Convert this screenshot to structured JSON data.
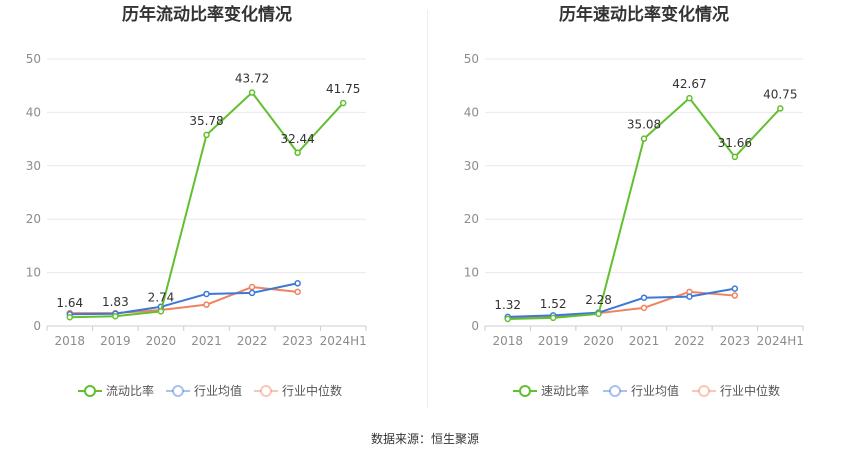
{
  "colors": {
    "own": "#62c02e",
    "industry_avg": "#3c78d8",
    "industry_median": "#f0825f",
    "axis_text": "#8c8c8c",
    "grid": "#e8e8ee",
    "title": "#333333"
  },
  "source": {
    "label": "数据来源：",
    "name": "恒生聚源"
  },
  "chart_data": [
    {
      "type": "line",
      "title": "历年流动比率变化情况",
      "x": [
        "2018",
        "2019",
        "2020",
        "2021",
        "2022",
        "2023",
        "2024H1"
      ],
      "ylim": [
        0,
        50
      ],
      "yticks": [
        0,
        10,
        20,
        30,
        40,
        50
      ],
      "grid": true,
      "legend_position": "bottom",
      "series": [
        {
          "name": "流动比率",
          "values": [
            1.64,
            1.83,
            2.74,
            35.78,
            43.72,
            32.44,
            41.75
          ],
          "labels": [
            "1.64",
            "1.83",
            "2.74",
            "35.78",
            "43.72",
            "32.44",
            "41.75"
          ]
        },
        {
          "name": "行业均值",
          "values": [
            2.2,
            2.3,
            3.6,
            6.0,
            6.2,
            8.0,
            null
          ]
        },
        {
          "name": "行业中位数",
          "values": [
            2.4,
            2.4,
            3.0,
            4.0,
            7.3,
            6.4,
            null
          ]
        }
      ]
    },
    {
      "type": "line",
      "title": "历年速动比率变化情况",
      "x": [
        "2018",
        "2019",
        "2020",
        "2021",
        "2022",
        "2023",
        "2024H1"
      ],
      "ylim": [
        0,
        50
      ],
      "yticks": [
        0,
        10,
        20,
        30,
        40,
        50
      ],
      "grid": true,
      "legend_position": "bottom",
      "series": [
        {
          "name": "速动比率",
          "values": [
            1.32,
            1.52,
            2.28,
            35.08,
            42.67,
            31.66,
            40.75
          ],
          "labels": [
            "1.32",
            "1.52",
            "2.28",
            "35.08",
            "42.67",
            "31.66",
            "40.75"
          ]
        },
        {
          "name": "行业均值",
          "values": [
            1.7,
            2.0,
            2.5,
            5.3,
            5.5,
            7.0,
            null
          ]
        },
        {
          "name": "行业中位数",
          "values": [
            1.5,
            1.8,
            2.4,
            3.4,
            6.4,
            5.7,
            null
          ]
        }
      ]
    }
  ]
}
